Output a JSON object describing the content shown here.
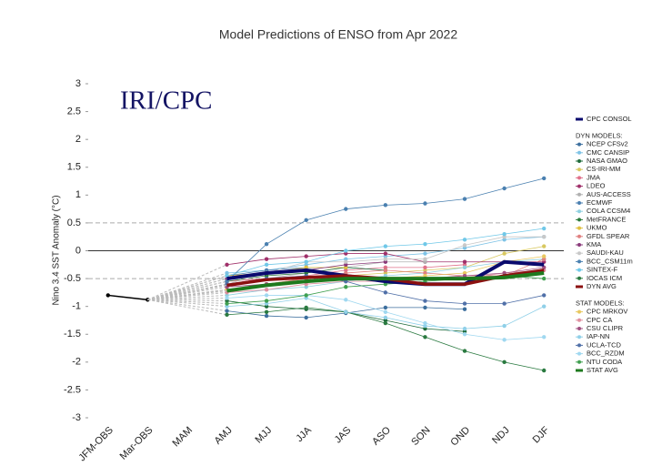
{
  "chart_data": {
    "type": "line",
    "title": "Model Predictions of ENSO from Apr 2022",
    "annotation": "IRI/CPC",
    "y_label": "Nino 3.4 SST Anomaly (°C)",
    "categories": [
      "JFM-OBS",
      "Mar-OBS",
      "MAM",
      "AMJ",
      "MJJ",
      "JJA",
      "JAS",
      "ASO",
      "SON",
      "OND",
      "NDJ",
      "DJF"
    ],
    "ylim": [
      -3,
      3
    ],
    "yticks": [
      3,
      2.5,
      2,
      1.5,
      1,
      0.5,
      0,
      -0.5,
      -1,
      -1.5,
      -2,
      -2.5,
      -3
    ],
    "hlines": [
      {
        "value": 0.5,
        "style": "dashed"
      },
      {
        "value": 0,
        "style": "solid"
      },
      {
        "value": -0.5,
        "style": "dashed"
      }
    ],
    "observed": {
      "color": "#000000",
      "values": [
        -0.8,
        -0.88,
        null,
        null,
        null,
        null,
        null,
        null,
        null,
        null,
        null,
        null
      ]
    },
    "series_groups": [
      {
        "series": [
          {
            "name": "CPC CONSOL",
            "color": "#0a0a6e",
            "line_width": 4,
            "values": [
              null,
              null,
              null,
              -0.5,
              -0.4,
              -0.35,
              -0.45,
              -0.55,
              -0.6,
              -0.6,
              -0.2,
              -0.25
            ]
          }
        ]
      },
      {
        "title": "DYN MODELS:",
        "series": [
          {
            "name": "NCEP CFSv2",
            "color": "#3d6f9e",
            "values": [
              null,
              null,
              null,
              -1.08,
              -1.17,
              -1.2,
              -1.12,
              -1.02,
              -1.02,
              -1.05,
              null,
              null
            ]
          },
          {
            "name": "CMC CANSIP",
            "color": "#7ec3e6",
            "values": [
              null,
              null,
              null,
              -0.4,
              -0.35,
              -0.25,
              -0.15,
              -0.1,
              -0.05,
              0.05,
              0.2,
              0.25
            ]
          },
          {
            "name": "NASA GMAO",
            "color": "#1e6b3a",
            "values": [
              null,
              null,
              null,
              -0.9,
              -1.0,
              -1.05,
              -1.1,
              -1.25,
              -1.4,
              -1.45,
              null,
              null
            ]
          },
          {
            "name": "CS-IRI-MM",
            "color": "#d8c860",
            "values": [
              null,
              null,
              null,
              -0.7,
              -0.6,
              -0.5,
              -0.45,
              -0.4,
              -0.35,
              -0.3,
              -0.05,
              0.08
            ]
          },
          {
            "name": "JMA",
            "color": "#e0708a",
            "values": [
              null,
              null,
              null,
              -0.55,
              -0.5,
              -0.45,
              -0.35,
              -0.3,
              -0.3,
              -0.25,
              null,
              null
            ]
          },
          {
            "name": "LDEO",
            "color": "#a0306a",
            "values": [
              null,
              null,
              null,
              -0.25,
              -0.15,
              -0.1,
              -0.05,
              -0.05,
              -0.2,
              -0.2,
              -0.2,
              -0.2
            ]
          },
          {
            "name": "AUS-ACCESS",
            "color": "#b0b0b0",
            "values": [
              null,
              null,
              null,
              -0.6,
              -0.5,
              -0.4,
              -0.3,
              -0.2,
              -0.2,
              null,
              null,
              null
            ]
          },
          {
            "name": "ECMWF",
            "color": "#4a7fb0",
            "values": [
              null,
              null,
              null,
              -0.45,
              -0.35,
              -0.3,
              -0.3,
              -0.35,
              null,
              null,
              null,
              null
            ]
          },
          {
            "name": "COLA CCSM4",
            "color": "#8fd0e0",
            "values": [
              null,
              null,
              null,
              -0.8,
              -0.7,
              -0.65,
              -0.55,
              -0.45,
              -0.4,
              -0.3,
              -0.2,
              -0.15
            ]
          },
          {
            "name": "MetFRANCE",
            "color": "#2a7a3a",
            "values": [
              null,
              null,
              null,
              -0.55,
              -0.45,
              -0.4,
              -0.3,
              -0.35,
              null,
              null,
              null,
              null
            ]
          },
          {
            "name": "UKMO",
            "color": "#e0c040",
            "values": [
              null,
              null,
              null,
              -0.45,
              -0.4,
              -0.3,
              -0.3,
              null,
              null,
              null,
              null,
              null
            ]
          },
          {
            "name": "GFDL SPEAR",
            "color": "#e08080",
            "values": [
              null,
              null,
              null,
              -0.7,
              -0.6,
              -0.5,
              -0.4,
              -0.35,
              -0.4,
              -0.45,
              -0.45,
              -0.15
            ]
          },
          {
            "name": "KMA",
            "color": "#8a3a7a",
            "values": [
              null,
              null,
              null,
              -0.5,
              -0.4,
              -0.35,
              -0.25,
              -0.2,
              null,
              null,
              null,
              null
            ]
          },
          {
            "name": "SAUDI-KAU",
            "color": "#c8c8c8",
            "values": [
              null,
              null,
              null,
              -0.6,
              -0.4,
              -0.2,
              -0.2,
              -0.15,
              -0.15,
              0.1,
              0.25,
              0.25
            ]
          },
          {
            "name": "BCC_CSM11m",
            "color": "#4a80b0",
            "values": [
              null,
              null,
              null,
              -0.55,
              0.12,
              0.55,
              0.75,
              0.82,
              0.85,
              0.93,
              1.12,
              1.3
            ]
          },
          {
            "name": "SINTEX-F",
            "color": "#70c8e8",
            "values": [
              null,
              null,
              null,
              -0.45,
              -0.25,
              -0.2,
              0.0,
              0.08,
              0.12,
              0.2,
              0.3,
              0.4
            ]
          },
          {
            "name": "IOCAS ICM",
            "color": "#2a7a40",
            "values": [
              null,
              null,
              null,
              -1.15,
              -1.1,
              -1.02,
              -1.1,
              -1.3,
              -1.55,
              -1.8,
              -2.0,
              -2.15
            ]
          },
          {
            "name": "DYN AVG",
            "color": "#8b1010",
            "line_width": 3.5,
            "values": [
              null,
              null,
              null,
              -0.62,
              -0.52,
              -0.48,
              -0.45,
              -0.5,
              -0.6,
              -0.6,
              -0.45,
              -0.35
            ]
          }
        ]
      },
      {
        "title": "STAT MODELS:",
        "series": [
          {
            "name": "CPC MRKOV",
            "color": "#e8c860",
            "values": [
              null,
              null,
              null,
              -0.7,
              -0.6,
              -0.55,
              -0.5,
              -0.5,
              -0.45,
              -0.4,
              -0.2,
              -0.1
            ]
          },
          {
            "name": "CPC CA",
            "color": "#e090a0",
            "values": [
              null,
              null,
              null,
              -0.75,
              -0.7,
              -0.6,
              -0.55,
              -0.55,
              -0.5,
              -0.5,
              -0.4,
              -0.35
            ]
          },
          {
            "name": "CSU CLIPR",
            "color": "#a05080",
            "values": [
              null,
              null,
              null,
              -0.65,
              -0.6,
              -0.55,
              -0.5,
              -0.5,
              -0.5,
              -0.45,
              -0.4,
              -0.3
            ]
          },
          {
            "name": "IAP-NN",
            "color": "#90d0e8",
            "values": [
              null,
              null,
              null,
              -1.0,
              -0.95,
              -0.85,
              -1.1,
              -1.2,
              -1.35,
              -1.4,
              -1.35,
              -1.0
            ]
          },
          {
            "name": "UCLA-TCD",
            "color": "#5070a8",
            "values": [
              null,
              null,
              null,
              -0.6,
              -0.5,
              -0.45,
              -0.55,
              -0.75,
              -0.9,
              -0.95,
              -0.95,
              -0.8
            ]
          },
          {
            "name": "BCC_RZDM",
            "color": "#a0d8f0",
            "values": [
              null,
              null,
              null,
              -0.85,
              -0.8,
              -0.8,
              -0.88,
              -1.1,
              -1.3,
              -1.5,
              -1.6,
              -1.55
            ]
          },
          {
            "name": "NTU CODA",
            "color": "#40a050",
            "values": [
              null,
              null,
              null,
              -0.95,
              -0.9,
              -0.8,
              -0.65,
              -0.6,
              -0.55,
              -0.5,
              -0.45,
              -0.5
            ]
          },
          {
            "name": "STAT AVG",
            "color": "#1e7a1e",
            "line_width": 4,
            "values": [
              null,
              null,
              null,
              -0.72,
              -0.62,
              -0.55,
              -0.5,
              -0.5,
              -0.5,
              -0.5,
              -0.48,
              -0.4
            ]
          }
        ]
      }
    ]
  }
}
